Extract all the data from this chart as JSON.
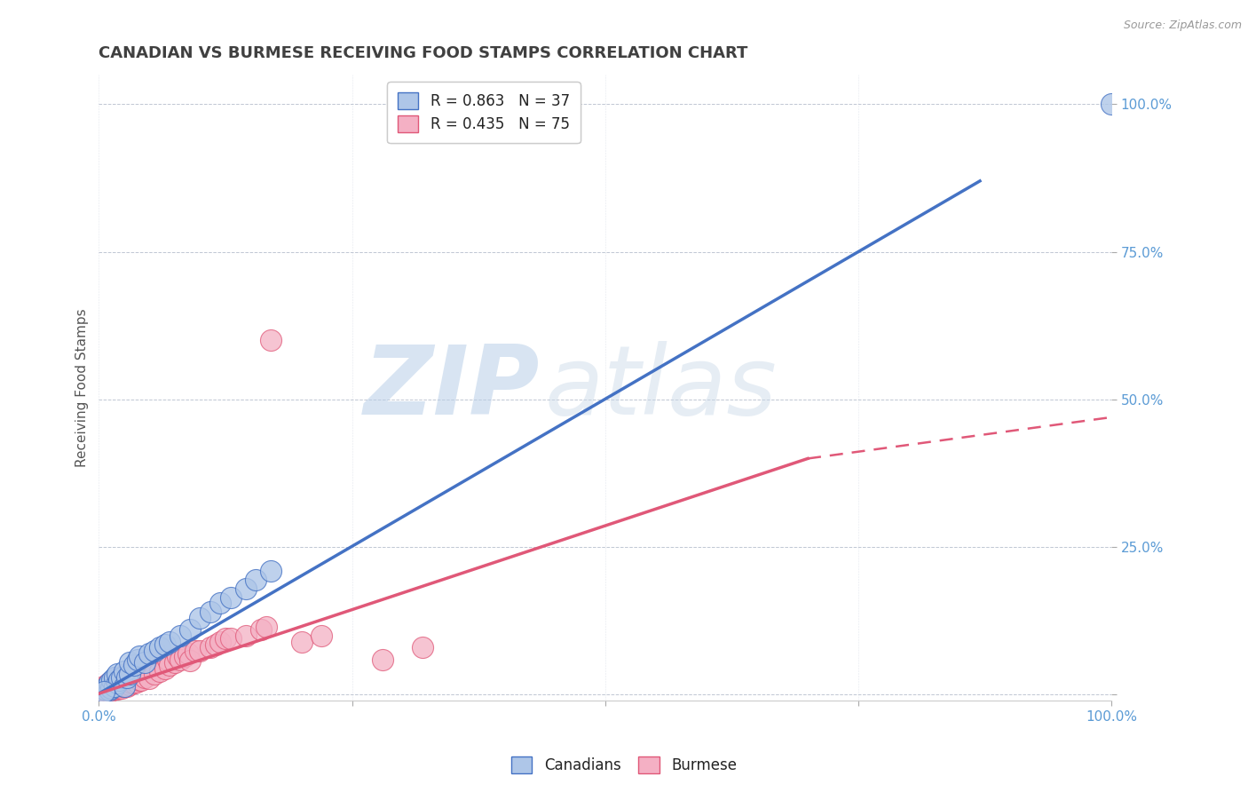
{
  "title": "CANADIAN VS BURMESE RECEIVING FOOD STAMPS CORRELATION CHART",
  "source_text": "Source: ZipAtlas.com",
  "ylabel": "Receiving Food Stamps",
  "xlim": [
    0,
    1
  ],
  "ylim": [
    -0.01,
    1.05
  ],
  "canadian_R": 0.863,
  "canadian_N": 37,
  "burmese_R": 0.435,
  "burmese_N": 75,
  "canadian_color": "#aec6e8",
  "canadian_line_color": "#4472c4",
  "burmese_color": "#f4b0c4",
  "burmese_line_color": "#e05878",
  "watermark_zip": "ZIP",
  "watermark_atlas": "atlas",
  "background_color": "#ffffff",
  "tick_color": "#5b9bd5",
  "title_color": "#404040",
  "ylabel_color": "#555555",
  "canadian_scatter_x": [
    0.005,
    0.008,
    0.01,
    0.01,
    0.012,
    0.013,
    0.015,
    0.015,
    0.018,
    0.018,
    0.02,
    0.022,
    0.025,
    0.025,
    0.028,
    0.03,
    0.03,
    0.035,
    0.038,
    0.04,
    0.045,
    0.05,
    0.055,
    0.06,
    0.065,
    0.07,
    0.08,
    0.09,
    0.1,
    0.11,
    0.12,
    0.13,
    0.145,
    0.155,
    0.17,
    1.0,
    0.005
  ],
  "canadian_scatter_y": [
    0.01,
    0.015,
    0.008,
    0.02,
    0.012,
    0.025,
    0.015,
    0.03,
    0.02,
    0.035,
    0.025,
    0.03,
    0.015,
    0.04,
    0.03,
    0.035,
    0.055,
    0.05,
    0.06,
    0.065,
    0.055,
    0.07,
    0.075,
    0.08,
    0.085,
    0.09,
    0.1,
    0.11,
    0.13,
    0.14,
    0.155,
    0.165,
    0.18,
    0.195,
    0.21,
    1.0,
    0.005
  ],
  "burmese_scatter_x": [
    0.002,
    0.004,
    0.005,
    0.005,
    0.007,
    0.008,
    0.008,
    0.01,
    0.01,
    0.01,
    0.012,
    0.012,
    0.013,
    0.013,
    0.015,
    0.015,
    0.015,
    0.017,
    0.017,
    0.018,
    0.018,
    0.02,
    0.02,
    0.02,
    0.022,
    0.022,
    0.023,
    0.023,
    0.025,
    0.025,
    0.027,
    0.028,
    0.028,
    0.03,
    0.03,
    0.032,
    0.033,
    0.035,
    0.035,
    0.037,
    0.038,
    0.04,
    0.04,
    0.042,
    0.043,
    0.045,
    0.047,
    0.05,
    0.05,
    0.055,
    0.06,
    0.065,
    0.068,
    0.07,
    0.075,
    0.078,
    0.08,
    0.085,
    0.088,
    0.09,
    0.095,
    0.1,
    0.11,
    0.115,
    0.12,
    0.125,
    0.13,
    0.145,
    0.16,
    0.165,
    0.17,
    0.2,
    0.22,
    0.28,
    0.32
  ],
  "burmese_scatter_y": [
    0.008,
    0.005,
    0.01,
    0.015,
    0.008,
    0.01,
    0.018,
    0.005,
    0.012,
    0.02,
    0.008,
    0.015,
    0.01,
    0.022,
    0.01,
    0.015,
    0.025,
    0.012,
    0.02,
    0.01,
    0.028,
    0.012,
    0.02,
    0.03,
    0.012,
    0.025,
    0.015,
    0.032,
    0.015,
    0.03,
    0.018,
    0.015,
    0.035,
    0.018,
    0.04,
    0.02,
    0.04,
    0.02,
    0.045,
    0.022,
    0.045,
    0.025,
    0.05,
    0.025,
    0.05,
    0.03,
    0.055,
    0.028,
    0.06,
    0.035,
    0.04,
    0.045,
    0.06,
    0.05,
    0.055,
    0.065,
    0.06,
    0.065,
    0.07,
    0.058,
    0.075,
    0.075,
    0.08,
    0.085,
    0.09,
    0.095,
    0.095,
    0.1,
    0.11,
    0.115,
    0.6,
    0.09,
    0.1,
    0.06,
    0.08
  ],
  "can_line_x0": 0.0,
  "can_line_y0": 0.002,
  "can_line_x1": 0.87,
  "can_line_y1": 0.87,
  "bur_line_solid_x0": 0.0,
  "bur_line_solid_y0": 0.002,
  "bur_line_solid_x1": 0.7,
  "bur_line_solid_y1": 0.4,
  "bur_line_dash_x0": 0.7,
  "bur_line_dash_y0": 0.4,
  "bur_line_dash_x1": 1.0,
  "bur_line_dash_y1": 0.47,
  "title_fontsize": 13,
  "axis_label_fontsize": 11,
  "tick_fontsize": 11,
  "legend_fontsize": 12
}
